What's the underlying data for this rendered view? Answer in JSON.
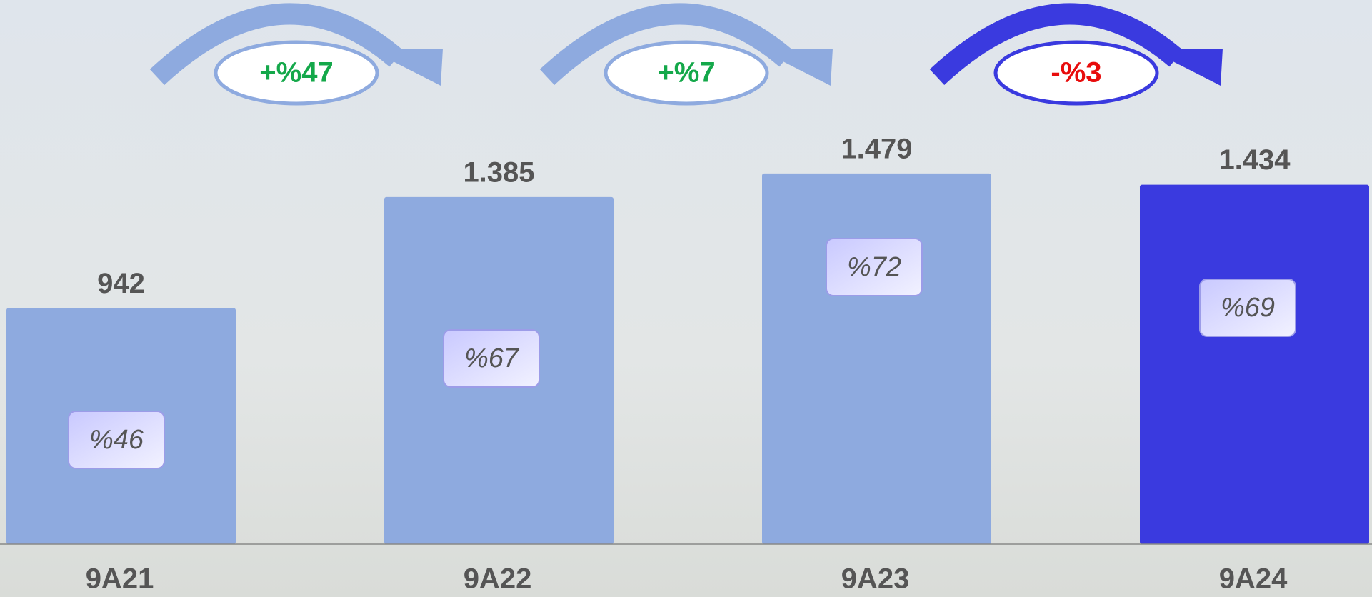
{
  "chart_data": {
    "type": "bar",
    "categories": [
      "9A21",
      "9A22",
      "9A23",
      "9A24"
    ],
    "values": [
      942,
      1385,
      1479,
      1434
    ],
    "value_labels": [
      "942",
      "1.385",
      "1.479",
      "1.434"
    ],
    "colors": [
      "#8eaadf",
      "#8eaadf",
      "#8eaadf",
      "#3a3adf"
    ],
    "inner_labels": [
      "%46",
      "%67",
      "%72",
      "%69"
    ],
    "changes": [
      "+%47",
      "+%7",
      "-%3"
    ],
    "change_colors": [
      "#14a84a",
      "#14a84a",
      "#e80c0c"
    ],
    "ylim": [
      0,
      2000
    ]
  }
}
